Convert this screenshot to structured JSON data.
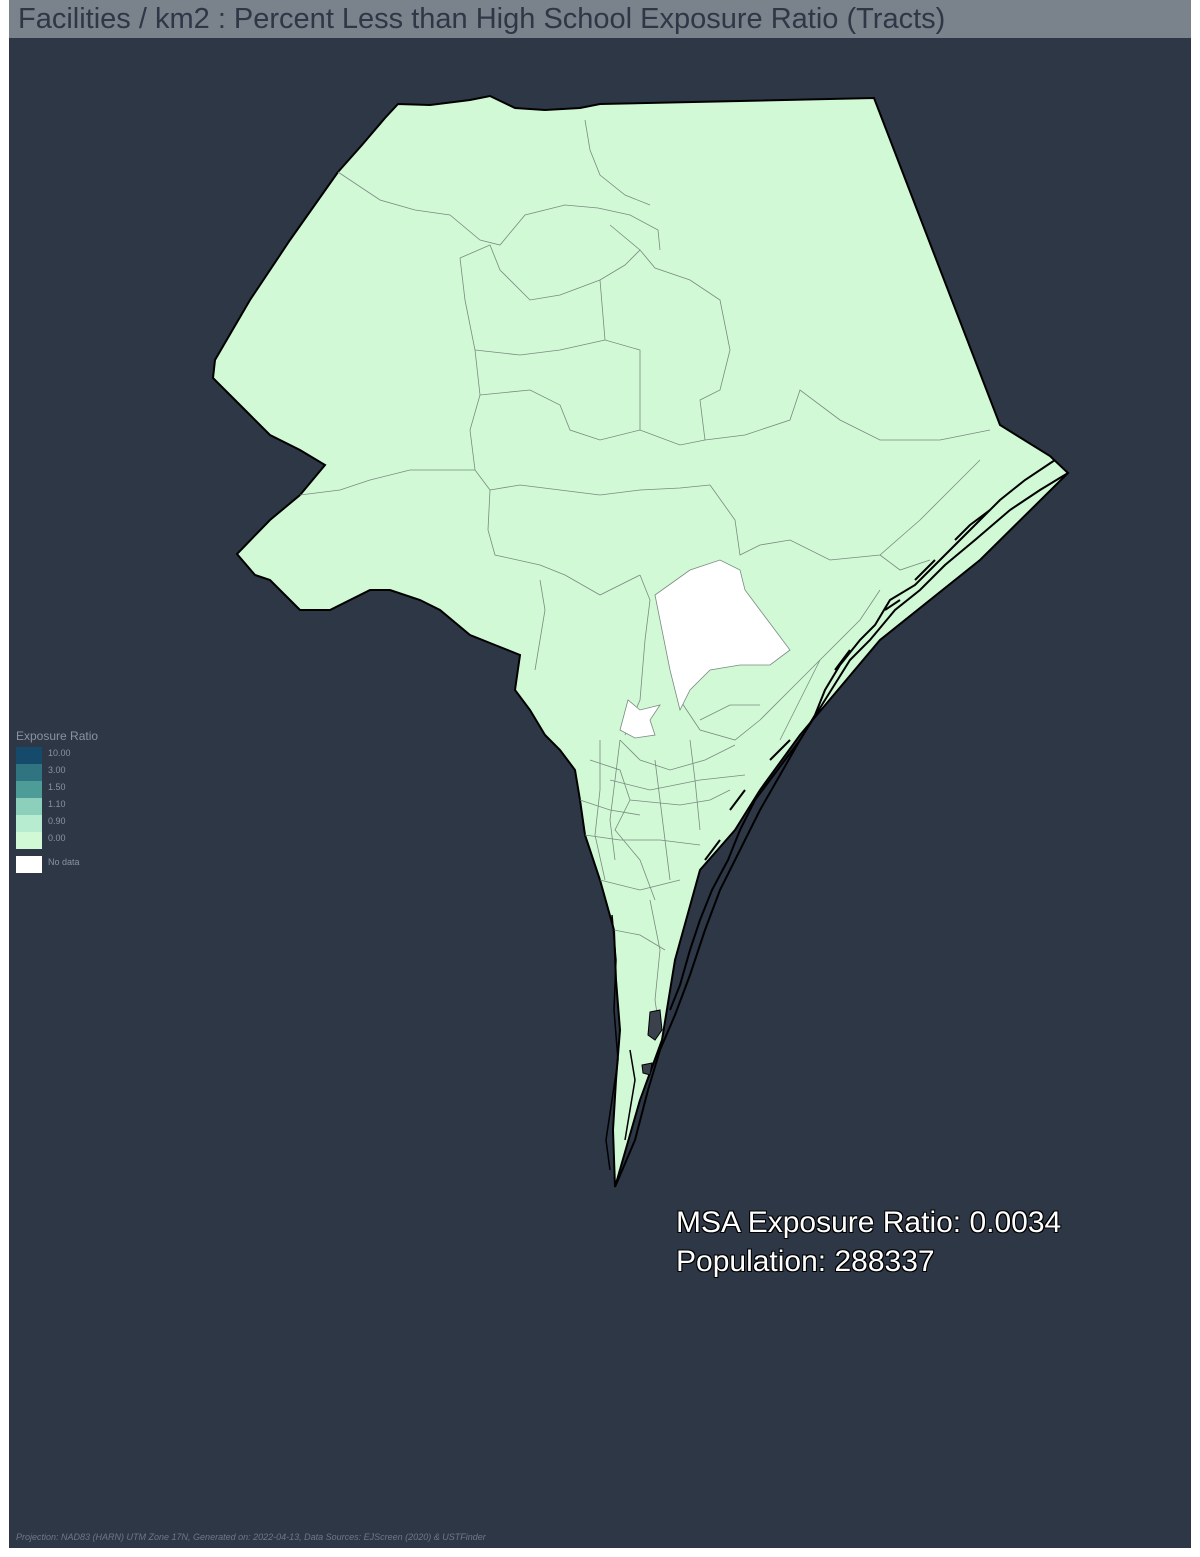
{
  "title": "Facilities / km2 : Percent Less than High School Exposure Ratio (Tracts)",
  "legend": {
    "title": "Exposure Ratio",
    "classes": [
      {
        "label": "10.00",
        "color": "#164a6b"
      },
      {
        "label": "3.00",
        "color": "#2f7480"
      },
      {
        "label": "1.50",
        "color": "#4d9c97"
      },
      {
        "label": "1.10",
        "color": "#8ccfba"
      },
      {
        "label": "0.90",
        "color": "#b8ecd1"
      },
      {
        "label": "0.00",
        "color": "#d1f9d6"
      }
    ],
    "no_data": {
      "label": "No data",
      "color": "#ffffff"
    }
  },
  "stats": {
    "exposure_ratio": "MSA Exposure Ratio: 0.0034",
    "population": "Population: 288337"
  },
  "footer": "Projection: NAD83 (HARN) UTM Zone 17N, Generated on: 2022-04-13, Data Sources: EJScreen (2020) & USTFinder",
  "colors": {
    "background": "#2e3746",
    "title_bar": "#7a828c",
    "tract_fill": "#d1f9d6",
    "no_data_fill": "#ffffff",
    "outline": "#000000"
  }
}
